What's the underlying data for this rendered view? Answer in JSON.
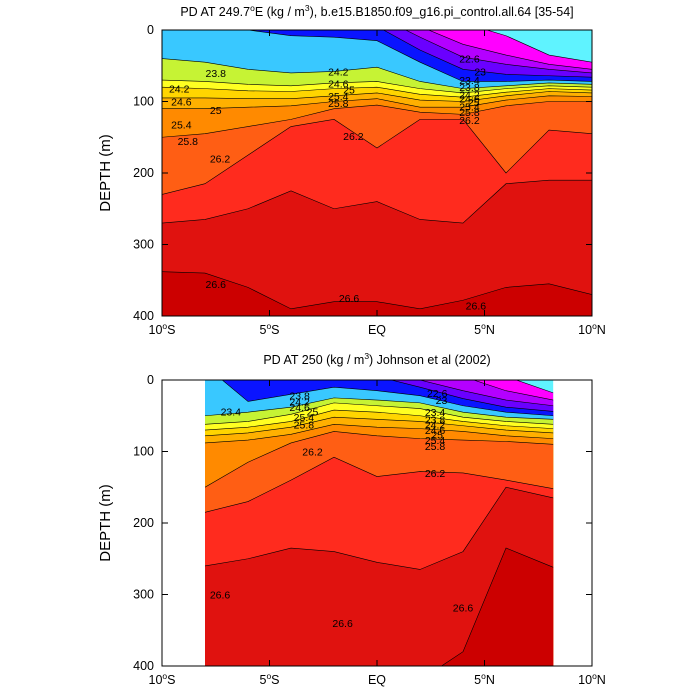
{
  "colors": {
    "fill_palette": [
      "#cc0000",
      "#e0120f",
      "#ff2020",
      "#ff5e14",
      "#ff8a00",
      "#ffb000",
      "#ffd300",
      "#ffff22",
      "#c8f53a",
      "#6fe84e",
      "#1ed77a",
      "#1ee7c5",
      "#4df7f0",
      "#39c8ff",
      "#2a7dff",
      "#0a14ff",
      "#0000b0",
      "#6a00ff",
      "#b400ff",
      "#ff00ff"
    ],
    "missing": "#b3b3b3",
    "line": "#000000"
  },
  "chart_data": [
    {
      "type": "contour",
      "title": "PD AT 249.7°E (kg / m³), b.e15.B1850.f09_g16.pi_control.all.64 [35-54]",
      "title_parts": {
        "pre": "PD AT 249.7",
        "deg": "o",
        "mid": "E (kg / m",
        "sup": "3",
        "post": "), b.e15.B1850.f09_g16.pi_control.all.64 [35-54]"
      },
      "xlabel": "",
      "ylabel": "DEPTH (m)",
      "xlim": [
        -10,
        10
      ],
      "ylim": [
        400,
        0
      ],
      "x_ticks": [
        {
          "v": -10,
          "num": "10",
          "deg": "o",
          "hemi": "S"
        },
        {
          "v": -5,
          "num": "5",
          "deg": "o",
          "hemi": "S"
        },
        {
          "v": 0,
          "num": "EQ",
          "deg": "",
          "hemi": ""
        },
        {
          "v": 5,
          "num": "5",
          "deg": "o",
          "hemi": "N"
        },
        {
          "v": 10,
          "num": "10",
          "deg": "o",
          "hemi": "N"
        }
      ],
      "y_ticks": [
        "0",
        "100",
        "200",
        "300",
        "400"
      ],
      "y_tick_values": [
        0,
        100,
        200,
        300,
        400
      ],
      "data_range": [
        -10,
        10
      ],
      "x_grid": [
        -10,
        -8,
        -6,
        -4,
        -2,
        0,
        2,
        4,
        6,
        8,
        10
      ],
      "surfaces": [
        {
          "level": 22.0,
          "depths": [
            -20,
            -20,
            -20,
            -20,
            -20,
            -20,
            -20,
            -10,
            8,
            35,
            45
          ]
        },
        {
          "level": 22.4,
          "depths": [
            -20,
            -20,
            -20,
            -20,
            -20,
            -20,
            -5,
            20,
            35,
            48,
            55
          ]
        },
        {
          "level": 22.8,
          "depths": [
            -20,
            -20,
            -20,
            -20,
            -20,
            -20,
            10,
            38,
            48,
            55,
            60
          ]
        },
        {
          "level": 23.2,
          "depths": [
            -20,
            -20,
            -20,
            -20,
            -20,
            -5,
            28,
            55,
            62,
            64,
            66
          ]
        },
        {
          "level": 23.6,
          "depths": [
            -10,
            -10,
            0,
            8,
            10,
            15,
            45,
            72,
            72,
            70,
            72
          ]
        },
        {
          "level": 24.0,
          "depths": [
            40,
            45,
            55,
            60,
            58,
            52,
            72,
            82,
            78,
            74,
            76
          ]
        },
        {
          "level": 24.4,
          "depths": [
            70,
            72,
            76,
            78,
            74,
            72,
            82,
            88,
            82,
            78,
            80
          ]
        },
        {
          "level": 24.8,
          "depths": [
            80,
            82,
            85,
            86,
            82,
            80,
            90,
            94,
            87,
            82,
            84
          ]
        },
        {
          "level": 25.2,
          "depths": [
            95,
            95,
            96,
            96,
            92,
            88,
            98,
            100,
            92,
            86,
            88
          ]
        },
        {
          "level": 25.6,
          "depths": [
            110,
            110,
            108,
            106,
            100,
            96,
            108,
            108,
            98,
            92,
            93
          ]
        },
        {
          "level": 26.0,
          "depths": [
            150,
            145,
            135,
            125,
            110,
            105,
            115,
            118,
            106,
            100,
            100
          ]
        },
        {
          "level": 26.4,
          "depths": [
            230,
            215,
            175,
            135,
            125,
            165,
            125,
            125,
            200,
            140,
            145
          ]
        },
        {
          "level": 26.8,
          "depths": [
            270,
            265,
            250,
            225,
            250,
            240,
            265,
            270,
            215,
            210,
            210
          ]
        },
        {
          "level": 27.2,
          "depths": [
            338,
            340,
            360,
            390,
            380,
            380,
            390,
            378,
            360,
            355,
            370
          ]
        }
      ],
      "labels": [
        {
          "text": "23.8",
          "x": -7.5,
          "d": 60
        },
        {
          "text": "24.2",
          "x": -9.2,
          "d": 82
        },
        {
          "text": "24.6",
          "x": -9.1,
          "d": 100
        },
        {
          "text": "25",
          "x": -7.5,
          "d": 112
        },
        {
          "text": "25.4",
          "x": -9.1,
          "d": 132
        },
        {
          "text": "25.8",
          "x": -8.8,
          "d": 155
        },
        {
          "text": "26.2",
          "x": -7.3,
          "d": 180
        },
        {
          "text": "26.6",
          "x": -7.5,
          "d": 355
        },
        {
          "text": "24.2",
          "x": -1.8,
          "d": 58
        },
        {
          "text": "24.6",
          "x": -1.8,
          "d": 75
        },
        {
          "text": "25",
          "x": -1.3,
          "d": 83
        },
        {
          "text": "25.4",
          "x": -1.8,
          "d": 92
        },
        {
          "text": "25.8",
          "x": -1.8,
          "d": 102
        },
        {
          "text": "26.2",
          "x": -1.1,
          "d": 148
        },
        {
          "text": "26.6",
          "x": -1.3,
          "d": 375
        },
        {
          "text": "22.6",
          "x": 4.3,
          "d": 40
        },
        {
          "text": "23",
          "x": 4.8,
          "d": 58
        },
        {
          "text": "23.4",
          "x": 4.3,
          "d": 70
        },
        {
          "text": "23.8",
          "x": 4.3,
          "d": 80
        },
        {
          "text": "24.2",
          "x": 4.3,
          "d": 90
        },
        {
          "text": "24.6",
          "x": 4.3,
          "d": 96
        },
        {
          "text": "25",
          "x": 4.5,
          "d": 101
        },
        {
          "text": "25.4",
          "x": 4.3,
          "d": 107
        },
        {
          "text": "25.8",
          "x": 4.3,
          "d": 115
        },
        {
          "text": "26.2",
          "x": 4.3,
          "d": 126
        },
        {
          "text": "26.6",
          "x": 4.6,
          "d": 385
        }
      ]
    },
    {
      "type": "contour",
      "title": "PD AT 250 (kg / m³) Johnson et al (2002)",
      "title_parts": {
        "pre": "PD AT 250 (kg / m",
        "deg": "",
        "mid": "",
        "sup": "3",
        "post": ") Johnson et al (2002)"
      },
      "xlabel": "",
      "ylabel": "DEPTH (m)",
      "xlim": [
        -10,
        10
      ],
      "ylim": [
        400,
        0
      ],
      "x_ticks": [
        {
          "v": -10,
          "num": "10",
          "deg": "o",
          "hemi": "S"
        },
        {
          "v": -5,
          "num": "5",
          "deg": "o",
          "hemi": "S"
        },
        {
          "v": 0,
          "num": "EQ",
          "deg": "",
          "hemi": ""
        },
        {
          "v": 5,
          "num": "5",
          "deg": "o",
          "hemi": "N"
        },
        {
          "v": 10,
          "num": "10",
          "deg": "o",
          "hemi": "N"
        }
      ],
      "y_ticks": [
        "0",
        "100",
        "200",
        "300",
        "400"
      ],
      "y_tick_values": [
        0,
        100,
        200,
        300,
        400
      ],
      "data_range": [
        -8,
        8.2
      ],
      "x_grid": [
        -8,
        -6,
        -4,
        -2,
        0,
        2,
        4,
        6,
        8.2
      ],
      "surfaces": [
        {
          "level": 22.0,
          "depths": [
            -20,
            -20,
            -20,
            -20,
            -20,
            -20,
            -20,
            -5,
            18
          ]
        },
        {
          "level": 22.4,
          "depths": [
            -20,
            -20,
            -20,
            -20,
            -20,
            -20,
            -5,
            15,
            28
          ]
        },
        {
          "level": 22.8,
          "depths": [
            -20,
            -20,
            -20,
            -20,
            -20,
            0,
            15,
            28,
            36
          ]
        },
        {
          "level": 23.2,
          "depths": [
            -20,
            -20,
            -20,
            -20,
            -5,
            10,
            26,
            38,
            44
          ]
        },
        {
          "level": 23.6,
          "depths": [
            -20,
            30,
            20,
            10,
            15,
            22,
            36,
            45,
            50
          ]
        },
        {
          "level": 24.0,
          "depths": [
            50,
            45,
            38,
            25,
            28,
            32,
            45,
            52,
            55
          ]
        },
        {
          "level": 24.4,
          "depths": [
            62,
            58,
            48,
            32,
            36,
            40,
            52,
            58,
            62
          ]
        },
        {
          "level": 24.8,
          "depths": [
            70,
            66,
            58,
            42,
            45,
            50,
            58,
            64,
            68
          ]
        },
        {
          "level": 25.2,
          "depths": [
            78,
            74,
            66,
            52,
            55,
            58,
            64,
            70,
            74
          ]
        },
        {
          "level": 25.6,
          "depths": [
            88,
            84,
            76,
            62,
            66,
            68,
            72,
            78,
            82
          ]
        },
        {
          "level": 26.0,
          "depths": [
            150,
            115,
            88,
            72,
            78,
            82,
            84,
            86,
            90
          ]
        },
        {
          "level": 26.4,
          "depths": [
            185,
            170,
            140,
            108,
            135,
            128,
            130,
            140,
            152
          ]
        },
        {
          "level": 26.8,
          "depths": [
            260,
            250,
            235,
            240,
            255,
            265,
            240,
            150,
            165
          ]
        },
        {
          "level": 27.2,
          "depths": [
            420,
            420,
            420,
            420,
            420,
            420,
            380,
            235,
            262
          ]
        }
      ],
      "labels": [
        {
          "text": "23.4",
          "x": -6.8,
          "d": 44
        },
        {
          "text": "23.8",
          "x": -3.6,
          "d": 22
        },
        {
          "text": "24.2",
          "x": -3.6,
          "d": 30
        },
        {
          "text": "24.6",
          "x": -3.6,
          "d": 38
        },
        {
          "text": "25",
          "x": -3.0,
          "d": 44
        },
        {
          "text": "25.4",
          "x": -3.4,
          "d": 52
        },
        {
          "text": "25.8",
          "x": -3.4,
          "d": 62
        },
        {
          "text": "26.2",
          "x": -3.0,
          "d": 100
        },
        {
          "text": "26.6",
          "x": -7.3,
          "d": 300
        },
        {
          "text": "26.6",
          "x": -1.6,
          "d": 340
        },
        {
          "text": "22.6",
          "x": 2.8,
          "d": 18
        },
        {
          "text": "23",
          "x": 3.0,
          "d": 28
        },
        {
          "text": "23.4",
          "x": 2.7,
          "d": 45
        },
        {
          "text": "23.8",
          "x": 2.7,
          "d": 55
        },
        {
          "text": "24.2",
          "x": 2.7,
          "d": 62
        },
        {
          "text": "24.6",
          "x": 2.7,
          "d": 70
        },
        {
          "text": "25",
          "x": 2.8,
          "d": 76
        },
        {
          "text": "25.4",
          "x": 2.7,
          "d": 84
        },
        {
          "text": "25.8",
          "x": 2.7,
          "d": 92
        },
        {
          "text": "26.2",
          "x": 2.7,
          "d": 130
        },
        {
          "text": "26.6",
          "x": 4.0,
          "d": 318
        }
      ]
    }
  ]
}
